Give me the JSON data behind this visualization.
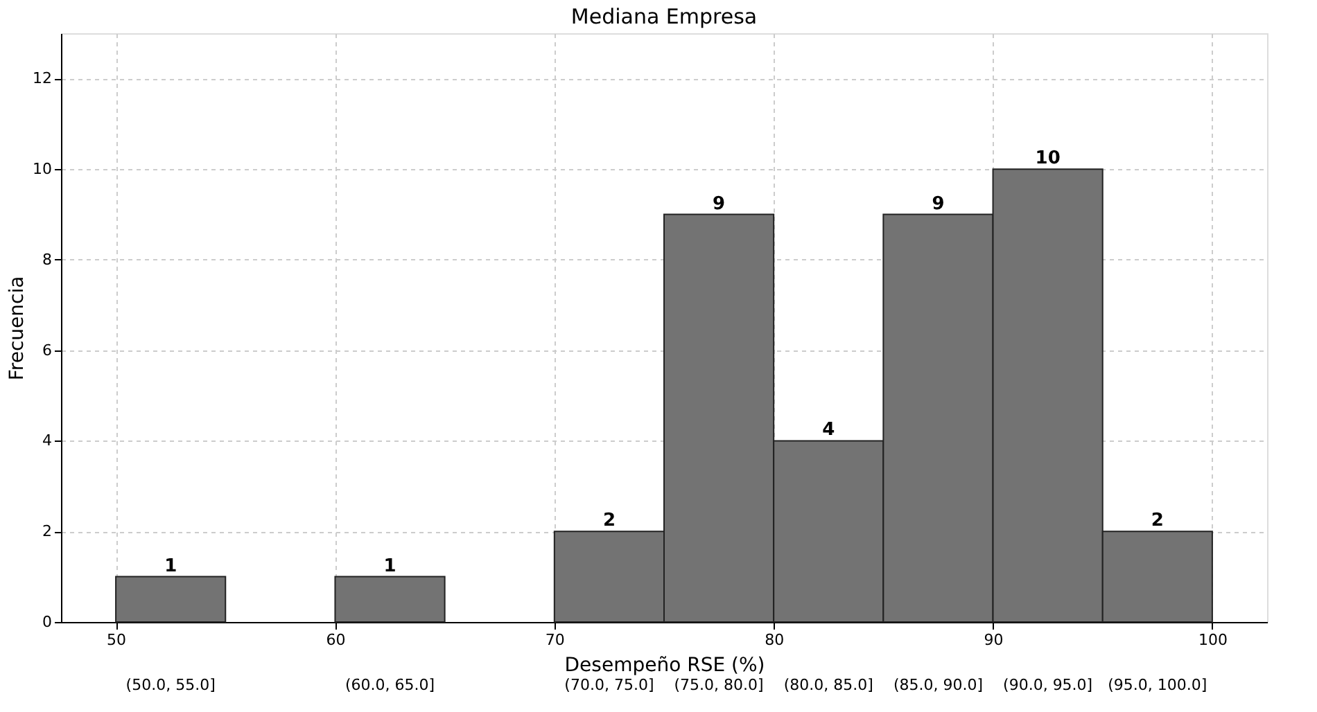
{
  "chart_data": {
    "type": "histogram",
    "title": "Mediana Empresa",
    "xlabel": "Desempeño RSE (%)",
    "ylabel": "Frecuencia",
    "bins": [
      50,
      55,
      60,
      65,
      70,
      75,
      80,
      85,
      90,
      95,
      100
    ],
    "values": [
      1,
      0,
      1,
      0,
      2,
      9,
      4,
      9,
      10,
      2
    ],
    "value_labels": [
      "1",
      null,
      "1",
      null,
      "2",
      "9",
      "4",
      "9",
      "10",
      "2"
    ],
    "color": "#737373",
    "xlim": [
      47.5,
      102.5
    ],
    "xticks": [
      50,
      60,
      70,
      80,
      90,
      100
    ],
    "ylim": [
      0,
      13
    ],
    "yticks": [
      0,
      2,
      4,
      6,
      8,
      10,
      12
    ],
    "grid": true,
    "annotations": [
      "(50.0, 55.0]",
      "(60.0, 65.0]",
      "(70.0, 75.0]",
      "(75.0, 80.0]",
      "(80.0, 85.0]",
      "(85.0, 90.0]",
      "(90.0, 95.0]",
      "(95.0, 100.0]"
    ]
  }
}
